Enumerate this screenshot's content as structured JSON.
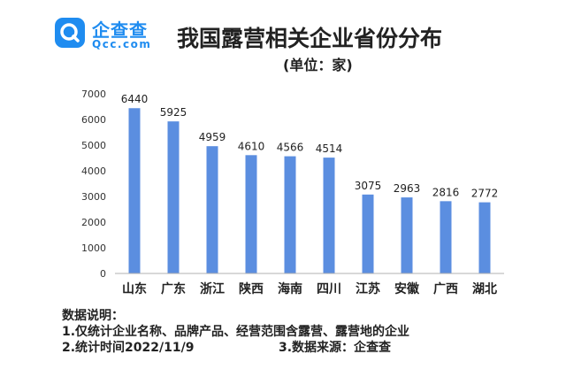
{
  "brand": {
    "name": "企查查",
    "domain": "Qcc.com",
    "color": "#1f8cf0"
  },
  "chart_data": {
    "type": "bar",
    "title": "我国露营相关企业省份分布",
    "subtitle": "(单位：家)",
    "categories": [
      "山东",
      "广东",
      "浙江",
      "陕西",
      "海南",
      "四川",
      "江苏",
      "安徽",
      "广西",
      "湖北"
    ],
    "values": [
      6440,
      5925,
      4959,
      4610,
      4566,
      4514,
      3075,
      2963,
      2816,
      2772
    ],
    "ylim": [
      0,
      7000
    ],
    "yticks": [
      0,
      1000,
      2000,
      3000,
      4000,
      5000,
      6000,
      7000
    ],
    "xlabel": "",
    "ylabel": "",
    "grid": false,
    "bar_color": "#5b8ee0"
  },
  "notes": {
    "heading": "数据说明：",
    "line1": "1.仅统计企业名称、品牌产品、经营范围含露营、露营地的企业",
    "line2": "2.统计时间2022/11/9",
    "line3": "3.数据来源：企查查"
  }
}
